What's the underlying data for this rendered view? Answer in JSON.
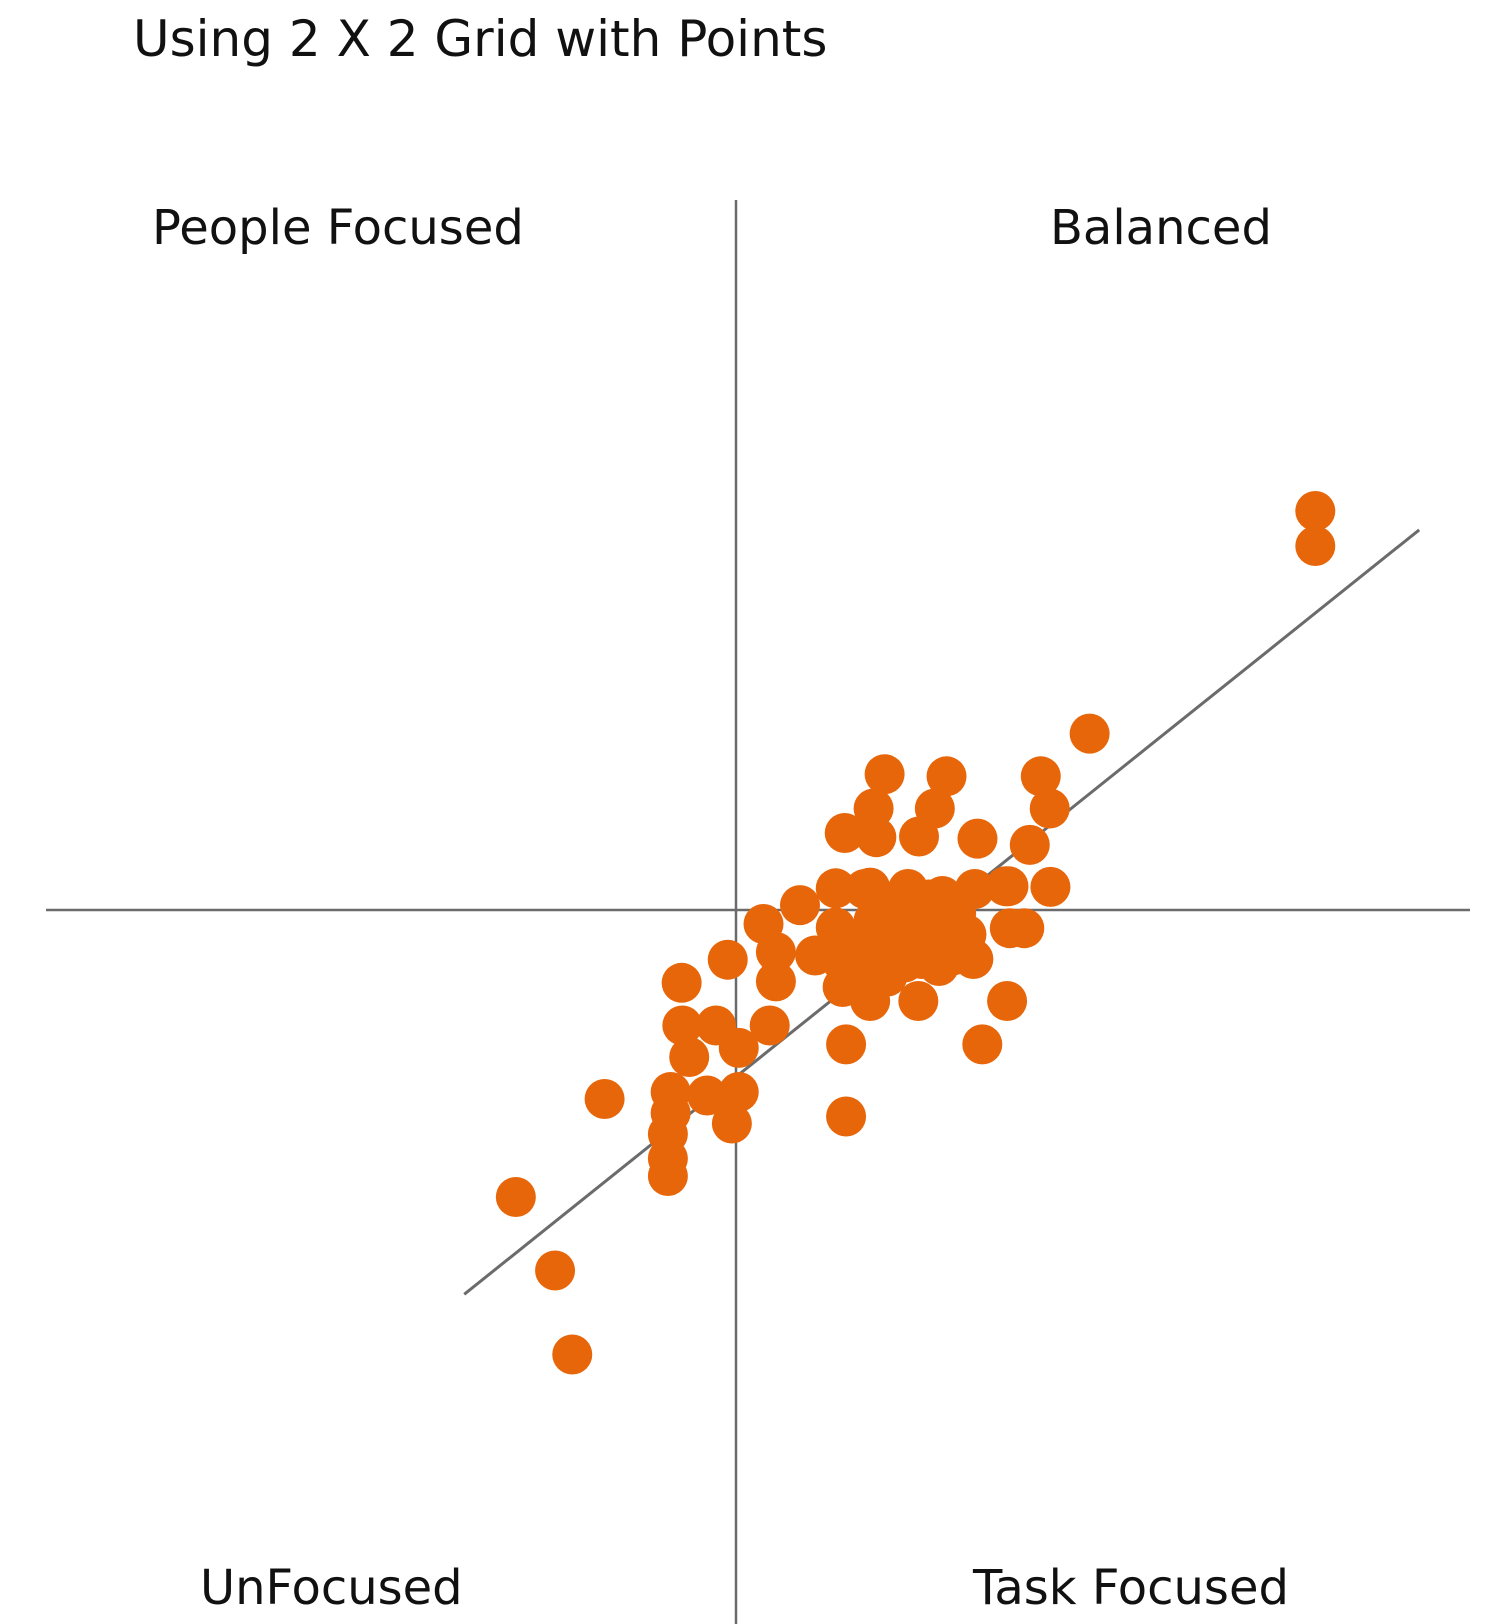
{
  "chart_data": {
    "type": "scatter",
    "title": "Using 2 X 2 Grid with Points",
    "xlabel": "",
    "ylabel": "",
    "xlim": [
      -10,
      10
    ],
    "ylim": [
      -10,
      10
    ],
    "grid": false,
    "quadrant_labels": {
      "top_left": "People Focused",
      "top_right": "Balanced",
      "bottom_left": "UnFocused",
      "bottom_right": "Task Focused"
    },
    "point_color": "#E8660A",
    "axis_color": "#6B6B6B",
    "trendline": {
      "x": [
        -3.95,
        9.93
      ],
      "y": [
        -5.49,
        5.43
      ]
    },
    "points": [
      {
        "x": 8.42,
        "y": 5.7
      },
      {
        "x": 8.42,
        "y": 5.2
      },
      {
        "x": 5.14,
        "y": 2.52
      },
      {
        "x": 4.43,
        "y": 1.91
      },
      {
        "x": 4.56,
        "y": 1.45
      },
      {
        "x": 4.27,
        "y": 0.93
      },
      {
        "x": 4.57,
        "y": 0.33
      },
      {
        "x": 3.98,
        "y": -0.26
      },
      {
        "x": 3.92,
        "y": 0.34
      },
      {
        "x": 3.47,
        "y": 0.3
      },
      {
        "x": 3.51,
        "y": 1.02
      },
      {
        "x": 3.06,
        "y": 1.91
      },
      {
        "x": 2.89,
        "y": 1.45
      },
      {
        "x": 2.66,
        "y": 1.05
      },
      {
        "x": 2.16,
        "y": 1.94
      },
      {
        "x": 2.0,
        "y": 1.45
      },
      {
        "x": 2.04,
        "y": 1.04
      },
      {
        "x": 1.87,
        "y": 0.3
      },
      {
        "x": 1.58,
        "y": 1.1
      },
      {
        "x": 1.45,
        "y": 0.31
      },
      {
        "x": 1.95,
        "y": 0.32
      },
      {
        "x": 2.5,
        "y": 0.3
      },
      {
        "x": 2.8,
        "y": 0.15
      },
      {
        "x": 3.0,
        "y": 0.2
      },
      {
        "x": 3.2,
        "y": -0.05
      },
      {
        "x": 3.35,
        "y": -0.35
      },
      {
        "x": 3.05,
        "y": -0.45
      },
      {
        "x": 2.8,
        "y": -0.35
      },
      {
        "x": 2.5,
        "y": -0.4
      },
      {
        "x": 2.25,
        "y": -0.55
      },
      {
        "x": 2.05,
        "y": -0.45
      },
      {
        "x": 1.75,
        "y": -0.55
      },
      {
        "x": 1.55,
        "y": -0.75
      },
      {
        "x": 1.95,
        "y": -0.85
      },
      {
        "x": 2.2,
        "y": -0.95
      },
      {
        "x": 2.45,
        "y": -0.75
      },
      {
        "x": 2.7,
        "y": -0.7
      },
      {
        "x": 2.95,
        "y": -0.8
      },
      {
        "x": 3.15,
        "y": -0.65
      },
      {
        "x": 2.55,
        "y": -0.15
      },
      {
        "x": 2.3,
        "y": 0.05
      },
      {
        "x": 2.0,
        "y": -0.15
      },
      {
        "x": 1.45,
        "y": -0.25
      },
      {
        "x": 1.15,
        "y": -0.65
      },
      {
        "x": 1.55,
        "y": -1.1
      },
      {
        "x": 1.95,
        "y": -1.3
      },
      {
        "x": 2.65,
        "y": -1.3
      },
      {
        "x": 3.45,
        "y": -0.7
      },
      {
        "x": 0.93,
        "y": 0.07
      },
      {
        "x": 0.4,
        "y": -0.2
      },
      {
        "x": 0.58,
        "y": -0.6
      },
      {
        "x": 0.58,
        "y": -1.02
      },
      {
        "x": 0.49,
        "y": -1.65
      },
      {
        "x": -0.12,
        "y": -0.71
      },
      {
        "x": -0.79,
        "y": -1.04
      },
      {
        "x": -0.78,
        "y": -1.65
      },
      {
        "x": -0.29,
        "y": -1.65
      },
      {
        "x": -0.68,
        "y": -2.1
      },
      {
        "x": 0.04,
        "y": -1.97
      },
      {
        "x": -0.95,
        "y": -2.6
      },
      {
        "x": 0.04,
        "y": -2.6
      },
      {
        "x": -0.42,
        "y": -2.65
      },
      {
        "x": -1.91,
        "y": -2.7
      },
      {
        "x": -0.95,
        "y": -2.9
      },
      {
        "x": -0.99,
        "y": -3.2
      },
      {
        "x": -0.99,
        "y": -3.55
      },
      {
        "x": -0.99,
        "y": -3.8
      },
      {
        "x": -0.06,
        "y": -3.05
      },
      {
        "x": 1.6,
        "y": -1.92
      },
      {
        "x": 1.6,
        "y": -2.95
      },
      {
        "x": 3.58,
        "y": -1.92
      },
      {
        "x": 3.94,
        "y": -1.3
      },
      {
        "x": 4.19,
        "y": -0.26
      },
      {
        "x": 3.96,
        "y": 0.34
      },
      {
        "x": -3.2,
        "y": -4.1
      },
      {
        "x": -2.63,
        "y": -5.15
      },
      {
        "x": -2.38,
        "y": -6.35
      }
    ]
  }
}
